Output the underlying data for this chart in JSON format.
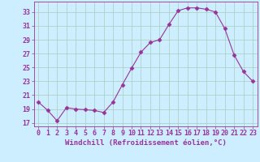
{
  "x": [
    0,
    1,
    2,
    3,
    4,
    5,
    6,
    7,
    8,
    9,
    10,
    11,
    12,
    13,
    14,
    15,
    16,
    17,
    18,
    19,
    20,
    21,
    22,
    23
  ],
  "y": [
    20.0,
    18.8,
    17.3,
    19.2,
    19.0,
    18.9,
    18.8,
    18.5,
    20.0,
    22.5,
    24.9,
    27.2,
    28.6,
    29.0,
    31.2,
    33.2,
    33.6,
    33.6,
    33.4,
    33.0,
    30.6,
    26.8,
    24.4,
    23.0
  ],
  "line_color": "#993399",
  "marker": "D",
  "marker_size": 2.5,
  "bg_color": "#cceeff",
  "grid_color": "#aaccbb",
  "xlabel": "Windchill (Refroidissement éolien,°C)",
  "ylabel": "",
  "ylim": [
    16.5,
    34.5
  ],
  "yticks": [
    17,
    19,
    21,
    23,
    25,
    27,
    29,
    31,
    33
  ],
  "xlim": [
    -0.5,
    23.5
  ],
  "xticks": [
    0,
    1,
    2,
    3,
    4,
    5,
    6,
    7,
    8,
    9,
    10,
    11,
    12,
    13,
    14,
    15,
    16,
    17,
    18,
    19,
    20,
    21,
    22,
    23
  ],
  "font_color": "#993399",
  "tick_fontsize": 6.0,
  "xlabel_fontsize": 6.5
}
